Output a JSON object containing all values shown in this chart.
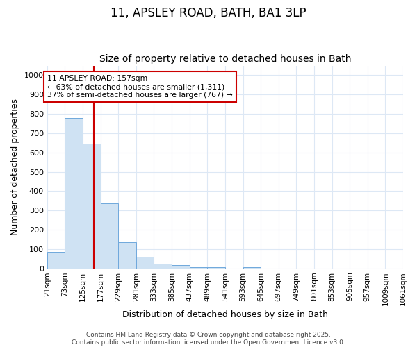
{
  "title": "11, APSLEY ROAD, BATH, BA1 3LP",
  "subtitle": "Size of property relative to detached houses in Bath",
  "xlabel": "Distribution of detached houses by size in Bath",
  "ylabel": "Number of detached properties",
  "bar_color": "#cfe2f3",
  "bar_edge_color": "#6fa8dc",
  "background_color": "#ffffff",
  "grid_color": "#dde8f5",
  "vline_x": 157,
  "vline_color": "#cc0000",
  "annotation_text": "11 APSLEY ROAD: 157sqm\n← 63% of detached houses are smaller (1,311)\n37% of semi-detached houses are larger (767) →",
  "annotation_box_facecolor": "#ffffff",
  "annotation_box_edgecolor": "#cc0000",
  "bin_edges": [
    21,
    73,
    125,
    177,
    229,
    281,
    333,
    385,
    437,
    489,
    541,
    593,
    645,
    697,
    749,
    801,
    853,
    905,
    957,
    1009,
    1061
  ],
  "bar_heights": [
    85,
    780,
    645,
    335,
    135,
    60,
    22,
    18,
    5,
    5,
    0,
    5,
    0,
    0,
    0,
    0,
    0,
    0,
    0,
    0
  ],
  "ylim": [
    0,
    1050
  ],
  "yticks": [
    0,
    100,
    200,
    300,
    400,
    500,
    600,
    700,
    800,
    900,
    1000
  ],
  "footer_text": "Contains HM Land Registry data © Crown copyright and database right 2025.\nContains public sector information licensed under the Open Government Licence v3.0.",
  "title_fontsize": 12,
  "subtitle_fontsize": 10,
  "axis_label_fontsize": 9,
  "tick_fontsize": 8,
  "footer_fontsize": 6.5
}
